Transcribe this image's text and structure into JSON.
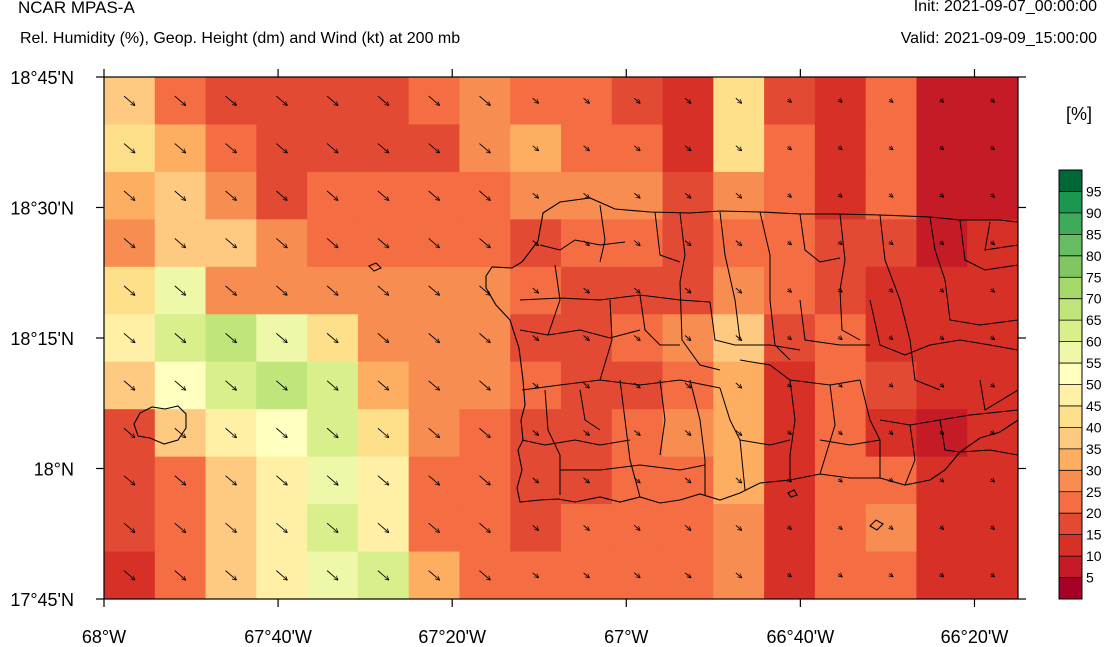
{
  "header": {
    "left_title": "NCAR MPAS-A",
    "subtitle": "Rel. Humidity (%), Geop. Height (dm) and Wind (kt) at 200 mb",
    "init_text": "Init: 2021-09-07_00:00:00",
    "valid_text": "Valid: 2021-09-09_15:00:00"
  },
  "colorbar": {
    "unit_label": "[%]",
    "tick_labels": [
      "5",
      "10",
      "15",
      "20",
      "25",
      "30",
      "35",
      "40",
      "45",
      "50",
      "55",
      "60",
      "65",
      "70",
      "75",
      "80",
      "85",
      "90",
      "95"
    ],
    "colors": [
      "#a50026",
      "#c41b27",
      "#d73027",
      "#e34a33",
      "#f46d43",
      "#f88d52",
      "#fdae61",
      "#fec980",
      "#fee08b",
      "#fff0a6",
      "#ffffbf",
      "#eff8a8",
      "#d9ef8b",
      "#c0e57a",
      "#a6d96a",
      "#80c764",
      "#66bd63",
      "#3faa59",
      "#1a9850",
      "#006837"
    ]
  },
  "chart_data": {
    "type": "heatmap",
    "title": "Rel. Humidity (%), Geop. Height (dm) and Wind (kt) at 200 mb",
    "x_tick_labels": [
      "68°W",
      "67°40'W",
      "67°20'W",
      "67°W",
      "66°40'W",
      "66°20'W"
    ],
    "y_tick_labels": [
      "18°45'N",
      "18°30'N",
      "18°15'N",
      "18°N",
      "17°45'N"
    ],
    "x_ticks_deg": [
      -68.0,
      -67.6667,
      -67.3333,
      -67.0,
      -66.6667,
      -66.3333
    ],
    "y_ticks_deg": [
      18.75,
      18.5,
      18.25,
      18.0,
      17.75
    ],
    "xlim": [
      -68.0,
      -66.25
    ],
    "ylim": [
      17.75,
      18.75
    ],
    "grid": false,
    "cols": 18,
    "rows": 10,
    "rh_percent": [
      [
        37,
        22,
        18,
        18,
        18,
        18,
        22,
        27,
        22,
        22,
        18,
        12,
        42,
        18,
        12,
        22,
        6,
        6
      ],
      [
        43,
        32,
        22,
        18,
        18,
        18,
        18,
        27,
        32,
        22,
        22,
        12,
        42,
        22,
        12,
        22,
        6,
        6
      ],
      [
        32,
        38,
        27,
        18,
        22,
        22,
        22,
        22,
        27,
        27,
        27,
        18,
        27,
        22,
        12,
        22,
        6,
        6
      ],
      [
        27,
        37,
        37,
        27,
        22,
        22,
        22,
        22,
        17,
        22,
        22,
        17,
        22,
        22,
        17,
        17,
        6,
        12
      ],
      [
        42,
        57,
        27,
        27,
        27,
        27,
        27,
        27,
        22,
        17,
        17,
        17,
        27,
        22,
        17,
        12,
        12,
        12
      ],
      [
        47,
        62,
        66,
        57,
        42,
        27,
        27,
        27,
        17,
        17,
        22,
        27,
        37,
        17,
        22,
        12,
        12,
        12
      ],
      [
        37,
        52,
        62,
        67,
        62,
        32,
        27,
        27,
        22,
        17,
        17,
        22,
        32,
        12,
        22,
        17,
        12,
        12
      ],
      [
        17,
        37,
        47,
        52,
        62,
        42,
        27,
        22,
        17,
        17,
        22,
        27,
        32,
        12,
        22,
        12,
        6,
        12
      ],
      [
        17,
        22,
        37,
        47,
        57,
        47,
        22,
        22,
        17,
        17,
        22,
        22,
        32,
        12,
        22,
        22,
        12,
        12
      ],
      [
        17,
        22,
        37,
        47,
        62,
        47,
        22,
        22,
        17,
        22,
        22,
        22,
        27,
        12,
        22,
        27,
        12,
        12
      ]
    ],
    "rh_bottom_row": [
      12,
      22,
      37,
      47,
      57,
      62,
      32,
      22,
      22,
      22,
      22,
      22,
      27,
      12,
      22,
      22,
      12,
      12
    ],
    "wind_arrow_direction": "northwesterly (pointing south-east)"
  }
}
